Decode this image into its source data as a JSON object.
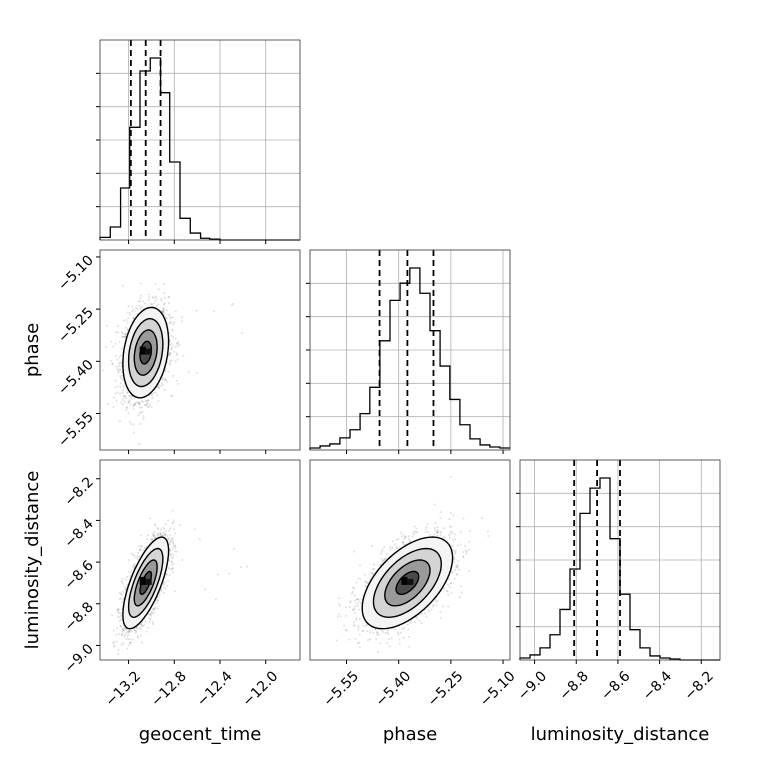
{
  "chart_data": {
    "type": "corner",
    "parameters": [
      "geocent_time",
      "phase",
      "luminosity_distance"
    ],
    "axis_labels": {
      "geocent_time": "geocent_time",
      "phase": "phase",
      "luminosity_distance": "luminosity_distance"
    },
    "ranges": {
      "geocent_time": [
        -13.45,
        -11.7
      ],
      "phase": [
        -5.655,
        -5.08
      ],
      "luminosity_distance": [
        -9.07,
        -8.11
      ]
    },
    "ticks": {
      "geocent_time": {
        "values": [
          -13.2,
          -12.8,
          -12.4,
          -12.0
        ],
        "labels": [
          "−13.2",
          "−12.8",
          "−12.4",
          "−12.0"
        ]
      },
      "phase": {
        "values": [
          -5.55,
          -5.4,
          -5.25,
          -5.1
        ],
        "labels": [
          "−5.55",
          "−5.40",
          "−5.25",
          "−5.10"
        ]
      },
      "luminosity_distance": {
        "values": [
          -9.0,
          -8.8,
          -8.6,
          -8.4,
          -8.2
        ],
        "labels": [
          "−9.0",
          "−8.8",
          "−8.6",
          "−8.4",
          "−8.2"
        ]
      }
    },
    "quantiles": {
      "geocent_time": [
        -13.18,
        -13.05,
        -12.92
      ],
      "phase": [
        -5.455,
        -5.375,
        -5.3
      ],
      "luminosity_distance": [
        -8.81,
        -8.7,
        -8.59
      ]
    },
    "histograms": {
      "geocent_time": {
        "bin_edges": [
          -13.45,
          -13.36,
          -13.27,
          -13.19,
          -13.1,
          -13.01,
          -12.92,
          -12.84,
          -12.75,
          -12.66,
          -12.57,
          -12.49,
          -12.4,
          -12.31,
          -12.22,
          -12.14,
          -12.05,
          -11.96,
          -11.87,
          -11.79,
          -11.7
        ],
        "counts": [
          3,
          15,
          60,
          130,
          195,
          210,
          170,
          90,
          25,
          8,
          2,
          1,
          0,
          0,
          0,
          0,
          0,
          0,
          0,
          0
        ]
      },
      "phase": {
        "bin_edges": [
          -5.655,
          -5.626,
          -5.598,
          -5.569,
          -5.54,
          -5.511,
          -5.483,
          -5.454,
          -5.425,
          -5.396,
          -5.368,
          -5.339,
          -5.31,
          -5.281,
          -5.253,
          -5.224,
          -5.195,
          -5.166,
          -5.138,
          -5.109,
          -5.08
        ],
        "counts": [
          2,
          4,
          6,
          12,
          20,
          36,
          62,
          108,
          148,
          165,
          180,
          155,
          118,
          83,
          50,
          25,
          11,
          5,
          3,
          2
        ]
      },
      "luminosity_distance": {
        "bin_edges": [
          -9.07,
          -9.022,
          -8.974,
          -8.926,
          -8.878,
          -8.83,
          -8.782,
          -8.734,
          -8.686,
          -8.638,
          -8.59,
          -8.542,
          -8.494,
          -8.446,
          -8.398,
          -8.35,
          -8.302,
          -8.254,
          -8.206,
          -8.158,
          -8.11
        ],
        "counts": [
          2,
          5,
          12,
          25,
          50,
          90,
          145,
          170,
          180,
          120,
          65,
          30,
          12,
          4,
          2,
          1,
          0,
          0,
          0,
          0
        ]
      }
    },
    "pairs": [
      {
        "x": "geocent_time",
        "y": "phase",
        "mean": [
          -13.05,
          -5.375
        ],
        "sd": [
          0.1,
          0.065
        ],
        "corr": 0.25
      },
      {
        "x": "geocent_time",
        "y": "luminosity_distance",
        "mean": [
          -13.05,
          -8.7
        ],
        "sd": [
          0.1,
          0.11
        ],
        "corr": 0.7
      },
      {
        "x": "phase",
        "y": "luminosity_distance",
        "mean": [
          -5.375,
          -8.7
        ],
        "sd": [
          0.065,
          0.11
        ],
        "corr": 0.55
      }
    ],
    "grid": true,
    "colors": {
      "hist": "#000000",
      "quantile": "#000000",
      "scatter": "#808080",
      "grid": "#b0b0b0",
      "axes": "#333333"
    }
  }
}
